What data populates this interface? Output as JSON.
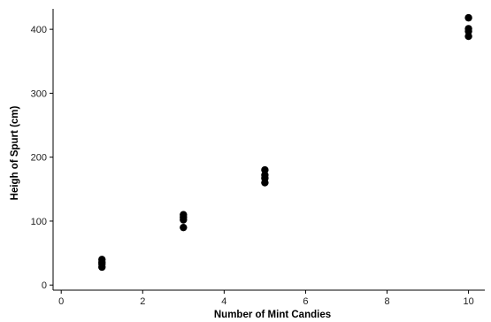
{
  "chart_data": {
    "type": "scatter",
    "xlabel": "Number of Mint Candies",
    "ylabel": "Heigh of Spurt (cm)",
    "xlim": [
      -0.2,
      10.4
    ],
    "ylim": [
      -8,
      432
    ],
    "xticks": [
      0,
      2,
      4,
      6,
      8,
      10
    ],
    "yticks": [
      0,
      100,
      200,
      300,
      400
    ],
    "grid": false,
    "series": [
      {
        "points": [
          {
            "x": 1,
            "y": 28
          },
          {
            "x": 1,
            "y": 33
          },
          {
            "x": 1,
            "y": 36
          },
          {
            "x": 1,
            "y": 40
          },
          {
            "x": 3,
            "y": 90
          },
          {
            "x": 3,
            "y": 102
          },
          {
            "x": 3,
            "y": 106
          },
          {
            "x": 3,
            "y": 110
          },
          {
            "x": 5,
            "y": 160
          },
          {
            "x": 5,
            "y": 167
          },
          {
            "x": 5,
            "y": 172
          },
          {
            "x": 5,
            "y": 180
          },
          {
            "x": 10,
            "y": 389
          },
          {
            "x": 10,
            "y": 397
          },
          {
            "x": 10,
            "y": 401
          },
          {
            "x": 10,
            "y": 418
          }
        ]
      }
    ],
    "marker_color": "#000000"
  }
}
